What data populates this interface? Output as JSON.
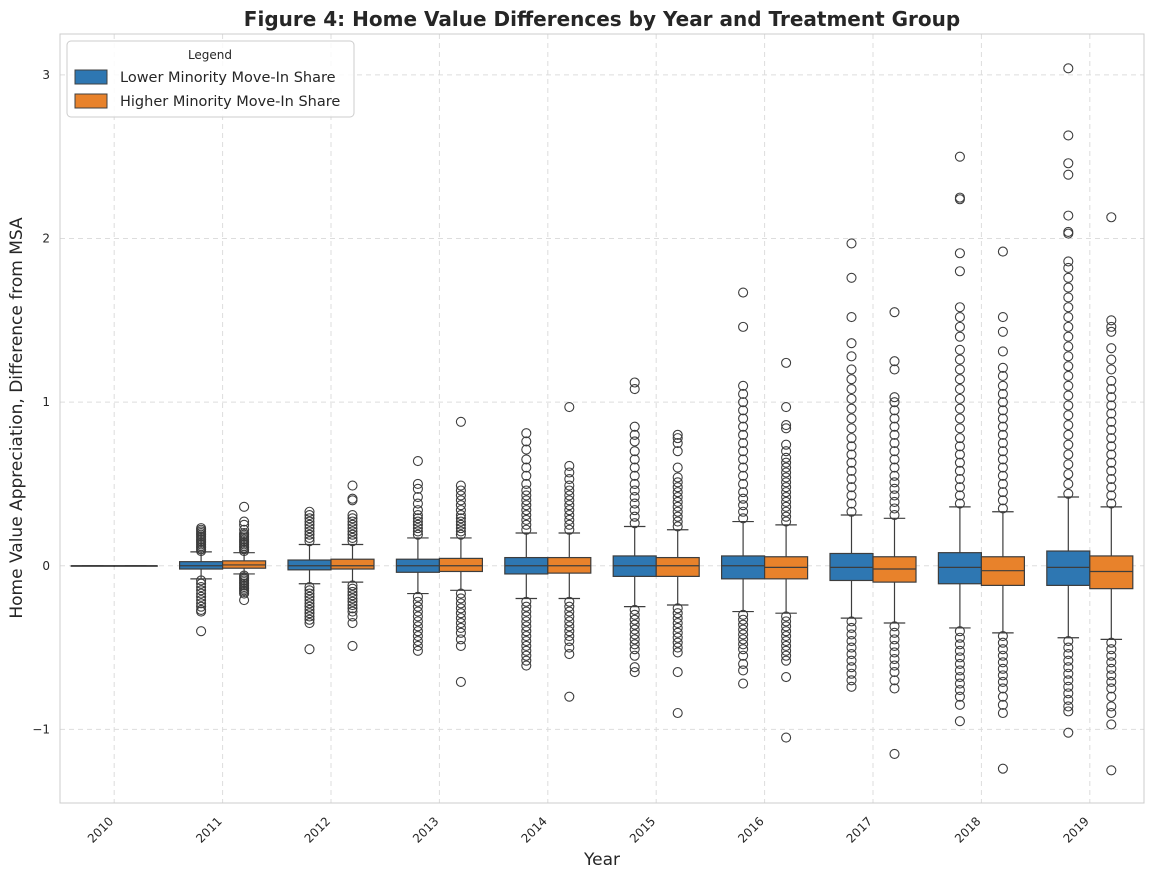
{
  "chart_data": {
    "type": "box",
    "title": "Figure 4: Home Value Differences by Year and Treatment Group",
    "xlabel": "Year",
    "ylabel": "Home Value Appreciation, Difference from MSA",
    "categories": [
      "2010",
      "2011",
      "2012",
      "2013",
      "2014",
      "2015",
      "2016",
      "2017",
      "2018",
      "2019"
    ],
    "ylim": [
      -1.45,
      3.25
    ],
    "yticks": [
      {
        "value": -1,
        "label": "−1"
      },
      {
        "value": 0,
        "label": "0"
      },
      {
        "value": 1,
        "label": "1"
      },
      {
        "value": 2,
        "label": "2"
      },
      {
        "value": 3,
        "label": "3"
      }
    ],
    "grid": true,
    "legend": {
      "title": "Legend",
      "position": "top-left"
    },
    "series": [
      {
        "name": "Lower Minority Move-In Share",
        "color": "#2e77b2",
        "boxes": [
          {
            "q1": 0.0,
            "median": 0.0,
            "q3": 0.0,
            "wlo": 0.0,
            "whi": 0.0,
            "outliers": []
          },
          {
            "q1": -0.02,
            "median": 0.0,
            "q3": 0.025,
            "wlo": -0.08,
            "whi": 0.085,
            "outliers": [
              0.09,
              0.1,
              0.11,
              0.12,
              0.13,
              0.14,
              0.15,
              0.16,
              0.17,
              0.18,
              0.19,
              0.2,
              0.21,
              0.22,
              0.23,
              -0.09,
              -0.11,
              -0.13,
              -0.15,
              -0.17,
              -0.19,
              -0.21,
              -0.23,
              -0.25,
              -0.27,
              -0.28,
              -0.4
            ]
          },
          {
            "q1": -0.025,
            "median": 0.0,
            "q3": 0.035,
            "wlo": -0.11,
            "whi": 0.13,
            "outliers": [
              0.15,
              0.17,
              0.19,
              0.21,
              0.23,
              0.25,
              0.27,
              0.29,
              0.31,
              0.33,
              -0.13,
              -0.15,
              -0.17,
              -0.19,
              -0.21,
              -0.23,
              -0.25,
              -0.27,
              -0.29,
              -0.31,
              -0.33,
              -0.35,
              -0.51
            ]
          },
          {
            "q1": -0.04,
            "median": 0.0,
            "q3": 0.04,
            "wlo": -0.17,
            "whi": 0.17,
            "outliers": [
              0.19,
              0.21,
              0.23,
              0.25,
              0.27,
              0.29,
              0.31,
              0.34,
              0.38,
              0.42,
              0.47,
              0.5,
              0.64,
              -0.19,
              -0.22,
              -0.25,
              -0.28,
              -0.31,
              -0.34,
              -0.37,
              -0.4,
              -0.43,
              -0.46,
              -0.49,
              -0.52
            ]
          },
          {
            "q1": -0.05,
            "median": 0.0,
            "q3": 0.05,
            "wlo": -0.2,
            "whi": 0.2,
            "outliers": [
              0.22,
              0.25,
              0.28,
              0.31,
              0.34,
              0.37,
              0.4,
              0.43,
              0.46,
              0.5,
              0.55,
              0.6,
              0.65,
              0.71,
              0.76,
              0.81,
              -0.22,
              -0.25,
              -0.28,
              -0.31,
              -0.34,
              -0.37,
              -0.4,
              -0.43,
              -0.46,
              -0.49,
              -0.52,
              -0.55,
              -0.58,
              -0.61
            ]
          },
          {
            "q1": -0.065,
            "median": 0.0,
            "q3": 0.06,
            "wlo": -0.25,
            "whi": 0.24,
            "outliers": [
              0.26,
              0.3,
              0.34,
              0.38,
              0.42,
              0.46,
              0.5,
              0.55,
              0.6,
              0.65,
              0.7,
              0.76,
              0.8,
              0.85,
              1.08,
              1.12,
              -0.27,
              -0.3,
              -0.33,
              -0.36,
              -0.39,
              -0.42,
              -0.45,
              -0.48,
              -0.51,
              -0.55,
              -0.62,
              -0.65
            ]
          },
          {
            "q1": -0.08,
            "median": 0.0,
            "q3": 0.06,
            "wlo": -0.28,
            "whi": 0.27,
            "outliers": [
              0.29,
              0.33,
              0.37,
              0.41,
              0.45,
              0.5,
              0.55,
              0.6,
              0.65,
              0.7,
              0.75,
              0.8,
              0.85,
              0.9,
              0.95,
              1.0,
              1.05,
              1.1,
              1.46,
              1.67,
              -0.3,
              -0.33,
              -0.36,
              -0.39,
              -0.42,
              -0.45,
              -0.48,
              -0.51,
              -0.55,
              -0.6,
              -0.64,
              -0.72
            ]
          },
          {
            "q1": -0.09,
            "median": -0.01,
            "q3": 0.075,
            "wlo": -0.32,
            "whi": 0.31,
            "outliers": [
              0.33,
              0.38,
              0.43,
              0.48,
              0.53,
              0.58,
              0.63,
              0.68,
              0.73,
              0.78,
              0.84,
              0.9,
              0.96,
              1.02,
              1.08,
              1.14,
              1.2,
              1.28,
              1.36,
              1.52,
              1.76,
              1.97,
              -0.34,
              -0.38,
              -0.42,
              -0.46,
              -0.5,
              -0.54,
              -0.58,
              -0.62,
              -0.66,
              -0.7,
              -0.74
            ]
          },
          {
            "q1": -0.11,
            "median": -0.01,
            "q3": 0.08,
            "wlo": -0.38,
            "whi": 0.36,
            "outliers": [
              0.38,
              0.43,
              0.48,
              0.53,
              0.58,
              0.63,
              0.68,
              0.73,
              0.78,
              0.84,
              0.9,
              0.96,
              1.02,
              1.08,
              1.14,
              1.2,
              1.26,
              1.32,
              1.4,
              1.46,
              1.52,
              1.58,
              1.8,
              1.91,
              2.24,
              2.25,
              2.5,
              -0.4,
              -0.44,
              -0.48,
              -0.52,
              -0.56,
              -0.6,
              -0.64,
              -0.68,
              -0.72,
              -0.76,
              -0.8,
              -0.85,
              -0.95
            ]
          },
          {
            "q1": -0.12,
            "median": -0.01,
            "q3": 0.09,
            "wlo": -0.44,
            "whi": 0.42,
            "outliers": [
              0.44,
              0.5,
              0.56,
              0.62,
              0.68,
              0.74,
              0.8,
              0.86,
              0.92,
              0.98,
              1.04,
              1.1,
              1.16,
              1.22,
              1.28,
              1.34,
              1.4,
              1.46,
              1.52,
              1.58,
              1.64,
              1.7,
              1.76,
              1.82,
              1.86,
              2.03,
              2.04,
              2.14,
              2.39,
              2.46,
              2.63,
              3.04,
              -0.46,
              -0.5,
              -0.54,
              -0.58,
              -0.62,
              -0.66,
              -0.7,
              -0.74,
              -0.78,
              -0.82,
              -0.86,
              -0.89,
              -1.02
            ]
          }
        ]
      },
      {
        "name": "Higher Minority Move-In Share",
        "color": "#e8822b",
        "boxes": [
          {
            "q1": 0.0,
            "median": 0.0,
            "q3": 0.0,
            "wlo": 0.0,
            "whi": 0.0,
            "outliers": []
          },
          {
            "q1": -0.015,
            "median": 0.005,
            "q3": 0.03,
            "wlo": -0.05,
            "whi": 0.08,
            "outliers": [
              0.09,
              0.1,
              0.11,
              0.12,
              0.13,
              0.14,
              0.15,
              0.16,
              0.17,
              0.18,
              0.19,
              0.2,
              0.22,
              0.25,
              0.27,
              0.36,
              -0.06,
              -0.07,
              -0.08,
              -0.09,
              -0.1,
              -0.11,
              -0.12,
              -0.13,
              -0.14,
              -0.15,
              -0.16,
              -0.17,
              -0.21
            ]
          },
          {
            "q1": -0.02,
            "median": 0.0,
            "q3": 0.04,
            "wlo": -0.1,
            "whi": 0.13,
            "outliers": [
              0.15,
              0.17,
              0.19,
              0.21,
              0.23,
              0.25,
              0.27,
              0.29,
              0.31,
              0.4,
              0.41,
              0.49,
              -0.12,
              -0.14,
              -0.16,
              -0.18,
              -0.2,
              -0.22,
              -0.24,
              -0.26,
              -0.28,
              -0.31,
              -0.35,
              -0.49
            ]
          },
          {
            "q1": -0.035,
            "median": 0.0,
            "q3": 0.045,
            "wlo": -0.15,
            "whi": 0.17,
            "outliers": [
              0.19,
              0.21,
              0.23,
              0.25,
              0.27,
              0.29,
              0.31,
              0.34,
              0.37,
              0.4,
              0.43,
              0.46,
              0.49,
              0.88,
              -0.17,
              -0.2,
              -0.23,
              -0.26,
              -0.29,
              -0.32,
              -0.35,
              -0.38,
              -0.41,
              -0.45,
              -0.49,
              -0.71
            ]
          },
          {
            "q1": -0.045,
            "median": 0.0,
            "q3": 0.05,
            "wlo": -0.2,
            "whi": 0.2,
            "outliers": [
              0.22,
              0.25,
              0.28,
              0.31,
              0.34,
              0.37,
              0.4,
              0.43,
              0.46,
              0.49,
              0.53,
              0.57,
              0.61,
              0.97,
              -0.22,
              -0.25,
              -0.28,
              -0.31,
              -0.34,
              -0.37,
              -0.4,
              -0.43,
              -0.46,
              -0.5,
              -0.54,
              -0.8
            ]
          },
          {
            "q1": -0.065,
            "median": 0.0,
            "q3": 0.05,
            "wlo": -0.24,
            "whi": 0.22,
            "outliers": [
              0.24,
              0.27,
              0.3,
              0.33,
              0.36,
              0.39,
              0.42,
              0.45,
              0.48,
              0.51,
              0.54,
              0.6,
              0.7,
              0.75,
              0.78,
              0.8,
              -0.26,
              -0.29,
              -0.32,
              -0.35,
              -0.38,
              -0.41,
              -0.44,
              -0.47,
              -0.5,
              -0.53,
              -0.65,
              -0.9
            ]
          },
          {
            "q1": -0.08,
            "median": -0.01,
            "q3": 0.055,
            "wlo": -0.29,
            "whi": 0.25,
            "outliers": [
              0.27,
              0.3,
              0.33,
              0.36,
              0.39,
              0.42,
              0.45,
              0.48,
              0.51,
              0.54,
              0.57,
              0.6,
              0.63,
              0.66,
              0.7,
              0.74,
              0.84,
              0.86,
              0.97,
              1.24,
              -0.31,
              -0.34,
              -0.37,
              -0.4,
              -0.43,
              -0.46,
              -0.49,
              -0.52,
              -0.55,
              -0.58,
              -0.68,
              -1.05
            ]
          },
          {
            "q1": -0.1,
            "median": -0.02,
            "q3": 0.055,
            "wlo": -0.35,
            "whi": 0.29,
            "outliers": [
              0.31,
              0.35,
              0.39,
              0.43,
              0.47,
              0.51,
              0.55,
              0.6,
              0.65,
              0.7,
              0.75,
              0.8,
              0.85,
              0.9,
              0.95,
              1.0,
              1.03,
              1.2,
              1.25,
              1.55,
              -0.37,
              -0.41,
              -0.45,
              -0.49,
              -0.53,
              -0.57,
              -0.61,
              -0.65,
              -0.7,
              -0.75,
              -1.15
            ]
          },
          {
            "q1": -0.12,
            "median": -0.03,
            "q3": 0.055,
            "wlo": -0.41,
            "whi": 0.33,
            "outliers": [
              0.35,
              0.4,
              0.45,
              0.5,
              0.55,
              0.6,
              0.65,
              0.7,
              0.75,
              0.8,
              0.85,
              0.9,
              0.95,
              1.0,
              1.05,
              1.1,
              1.16,
              1.21,
              1.31,
              1.43,
              1.52,
              1.92,
              -0.43,
              -0.47,
              -0.51,
              -0.55,
              -0.59,
              -0.63,
              -0.67,
              -0.71,
              -0.75,
              -0.8,
              -0.85,
              -0.9,
              -1.24
            ]
          },
          {
            "q1": -0.14,
            "median": -0.035,
            "q3": 0.06,
            "wlo": -0.45,
            "whi": 0.36,
            "outliers": [
              0.38,
              0.43,
              0.48,
              0.53,
              0.58,
              0.63,
              0.68,
              0.73,
              0.78,
              0.83,
              0.88,
              0.93,
              0.98,
              1.03,
              1.08,
              1.13,
              1.2,
              1.26,
              1.33,
              1.43,
              1.46,
              1.5,
              2.13,
              -0.47,
              -0.51,
              -0.55,
              -0.59,
              -0.63,
              -0.67,
              -0.71,
              -0.75,
              -0.8,
              -0.86,
              -0.9,
              -0.97,
              -1.25
            ]
          }
        ]
      }
    ]
  }
}
